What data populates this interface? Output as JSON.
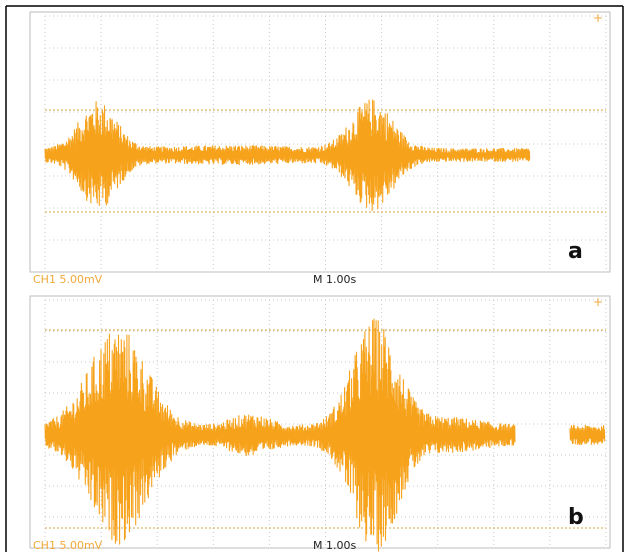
{
  "panels": [
    {
      "channel_label": "CH1  5.00mV",
      "time_label": "M 1.00s",
      "panel_label": "a"
    },
    {
      "channel_label": "CH1  5.00mV",
      "time_label": "M 1.00s",
      "panel_label": "b"
    }
  ]
}
